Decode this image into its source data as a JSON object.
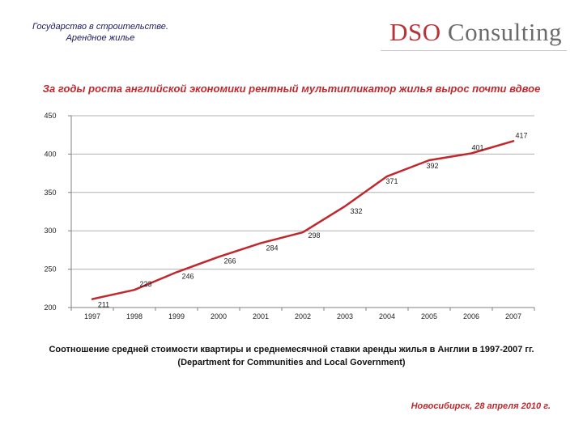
{
  "header": {
    "line1": "Государство в строительстве.",
    "line2": "Арендное жилье"
  },
  "logo": {
    "brand": "DSO",
    "rest": " Consulting"
  },
  "headline": "За годы роста английской экономики рентный мультипликатор жилья вырос почти вдвое",
  "caption": {
    "line1": "Соотношение средней стоимости квартиры и среднемесячной ставки аренды жилья в Англии в 1997-2007 гг.",
    "line2": "(Department for Communities and Local Government)"
  },
  "footer": "Новосибирск, 28 апреля 2010 г.",
  "colors": {
    "line": "#c0282d",
    "headline": "#c0282d",
    "axis": "#808080",
    "grid": "#b0b0b0"
  },
  "chart_data": {
    "type": "line",
    "categories": [
      "1997",
      "1998",
      "1999",
      "2000",
      "2001",
      "2002",
      "2003",
      "2004",
      "2005",
      "2006",
      "2007"
    ],
    "series": [
      {
        "values": [
          211,
          223,
          246,
          266,
          284,
          298,
          332,
          371,
          392,
          401,
          417
        ]
      }
    ],
    "data_labels": [
      "211",
      "223",
      "246",
      "266",
      "284",
      "298",
      "332",
      "371",
      "392",
      "401",
      "417"
    ],
    "yticks": [
      200,
      250,
      300,
      350,
      400,
      450
    ],
    "ylim": [
      200,
      450
    ],
    "grid": "horizontal",
    "legend": "none"
  }
}
